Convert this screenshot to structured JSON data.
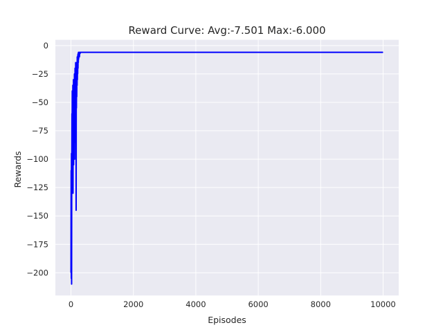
{
  "chart_data": {
    "type": "line",
    "title": "Reward Curve: Avg:-7.501 Max:-6.000",
    "xlabel": "Episodes",
    "ylabel": "Rewards",
    "xlim": [
      -500,
      10500
    ],
    "ylim": [
      -220,
      5
    ],
    "xticks": [
      0,
      2000,
      4000,
      6000,
      8000,
      10000
    ],
    "yticks": [
      0,
      -25,
      -50,
      -75,
      -100,
      -125,
      -150,
      -175,
      -200
    ],
    "grid": true,
    "legend": "none",
    "colors": {
      "line": "#0000ff",
      "background": "#eaeaf2",
      "grid": "#ffffff"
    },
    "series": [
      {
        "x": [
          0,
          5,
          10,
          15,
          20,
          25,
          30,
          35,
          40,
          45,
          50,
          55,
          60,
          65,
          70,
          75,
          80,
          85,
          90,
          95,
          100,
          105,
          110,
          115,
          120,
          125,
          130,
          135,
          140,
          145,
          150,
          155,
          160,
          165,
          170,
          175,
          180,
          185,
          190,
          195,
          200,
          205,
          210,
          215,
          220,
          225,
          230,
          235,
          240,
          245,
          250,
          260,
          270,
          280,
          290,
          300,
          320,
          340,
          360,
          380,
          400,
          1000,
          2000,
          3000,
          4000,
          5000,
          6000,
          7000,
          8000,
          9000,
          10000
        ],
        "y": [
          -200,
          -110,
          -205,
          -95,
          -210,
          -105,
          -60,
          -95,
          -40,
          -100,
          -45,
          -90,
          -35,
          -130,
          -60,
          -100,
          -30,
          -105,
          -50,
          -95,
          -40,
          -75,
          -25,
          -100,
          -45,
          -80,
          -20,
          -85,
          -35,
          -75,
          -15,
          -60,
          -30,
          -145,
          -25,
          -55,
          -15,
          -45,
          -20,
          -35,
          -10,
          -30,
          -12,
          -25,
          -8,
          -20,
          -7,
          -15,
          -6,
          -12,
          -8,
          -6,
          -10,
          -6,
          -7,
          -6,
          -6,
          -6,
          -6,
          -6,
          -6,
          -6,
          -6,
          -6,
          -6,
          -6,
          -6,
          -6,
          -6,
          -6,
          -6
        ]
      }
    ]
  }
}
